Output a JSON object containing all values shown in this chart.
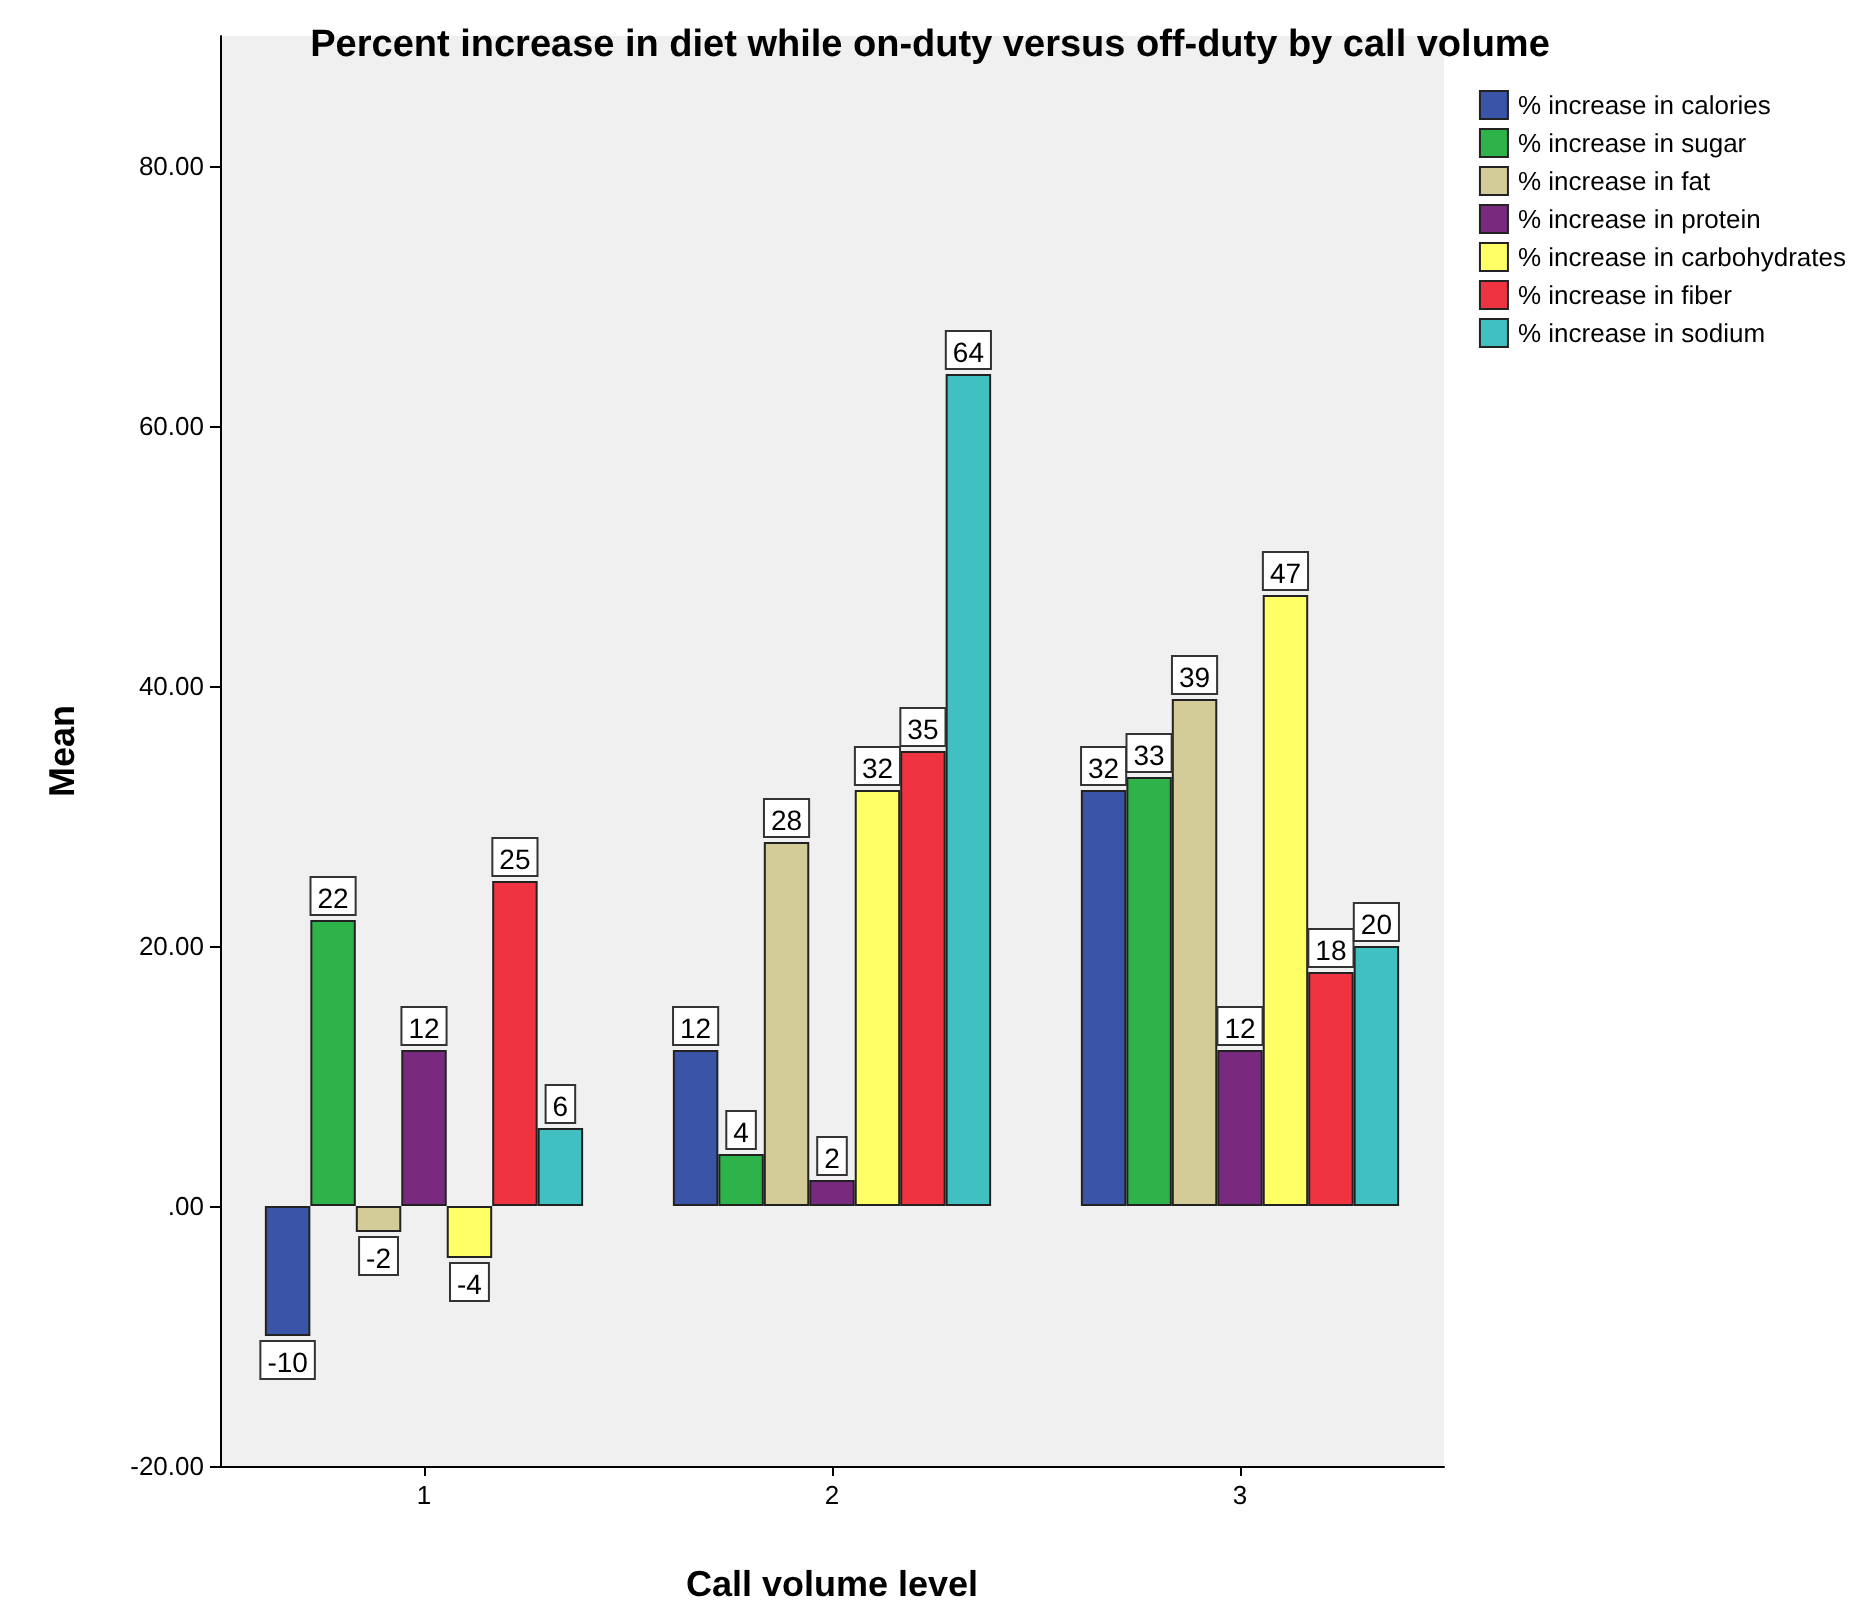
{
  "chart_data": {
    "type": "bar",
    "title": "Percent increase in diet while on-duty versus off-duty by call volume",
    "xlabel": "Call volume level",
    "ylabel": "Mean",
    "categories": [
      "1",
      "2",
      "3"
    ],
    "series": [
      {
        "name": "% increase in calories",
        "color": "#3a55a8",
        "values": [
          -10,
          12,
          32
        ]
      },
      {
        "name": "% increase in sugar",
        "color": "#2db34a",
        "values": [
          22,
          4,
          33
        ]
      },
      {
        "name": "% increase in fat",
        "color": "#d4cc98",
        "values": [
          -2,
          28,
          39
        ]
      },
      {
        "name": "% increase in protein",
        "color": "#7a2a7e",
        "values": [
          12,
          2,
          12
        ]
      },
      {
        "name": "% increase in carbohydrates",
        "color": "#ffff66",
        "values": [
          -4,
          32,
          47
        ]
      },
      {
        "name": "% increase in fiber",
        "color": "#ef3340",
        "values": [
          25,
          35,
          18
        ]
      },
      {
        "name": "% increase in sodium",
        "color": "#40c0c0",
        "values": [
          6,
          64,
          20
        ]
      }
    ],
    "ylim": [
      -20,
      90
    ],
    "yticks": [
      {
        "value": -20,
        "label": "-20.00"
      },
      {
        "value": 0,
        "label": ".00"
      },
      {
        "value": 20,
        "label": "20.00"
      },
      {
        "value": 40,
        "label": "40.00"
      },
      {
        "value": 60,
        "label": "60.00"
      },
      {
        "value": 80,
        "label": "80.00"
      }
    ],
    "grid": false,
    "legend": "top right",
    "data_labels": true
  }
}
